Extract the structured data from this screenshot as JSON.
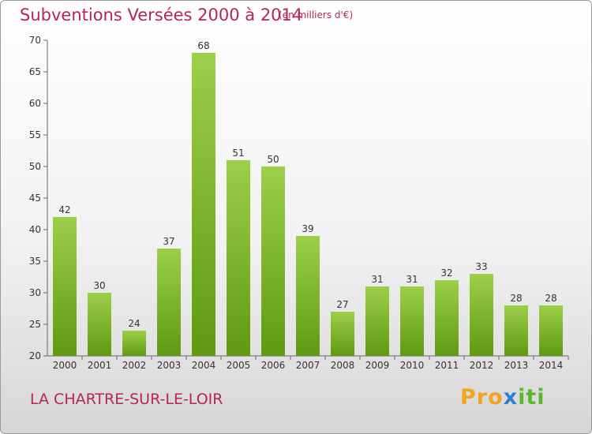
{
  "chart_data": {
    "type": "bar",
    "title": "Subventions Versées 2000 à 2014",
    "subtitle": "(en milliers d'€)",
    "categories": [
      "2000",
      "2001",
      "2002",
      "2003",
      "2004",
      "2005",
      "2006",
      "2007",
      "2008",
      "2009",
      "2010",
      "2011",
      "2012",
      "2013",
      "2014"
    ],
    "values": [
      42,
      30,
      24,
      37,
      68,
      51,
      50,
      39,
      27,
      31,
      31,
      32,
      33,
      28,
      28
    ],
    "ylim": [
      20,
      70
    ],
    "yticks": [
      20,
      25,
      30,
      35,
      40,
      45,
      50,
      55,
      60,
      65,
      70
    ],
    "grid": false,
    "bar_color_top": "#9ccf4b",
    "bar_color_bottom": "#5f9a12"
  },
  "footer": {
    "town": "LA CHARTRE-SUR-LE-LOIR",
    "logo_letters": [
      "P",
      "r",
      "o",
      "x",
      "i",
      "t",
      "i"
    ],
    "logo_colors": [
      "#f0a51d",
      "#f0a51d",
      "#f0a51d",
      "#2f7fd1",
      "#58b82e",
      "#58b82e",
      "#58b82e"
    ]
  },
  "colors": {
    "title": "#b5245a"
  }
}
